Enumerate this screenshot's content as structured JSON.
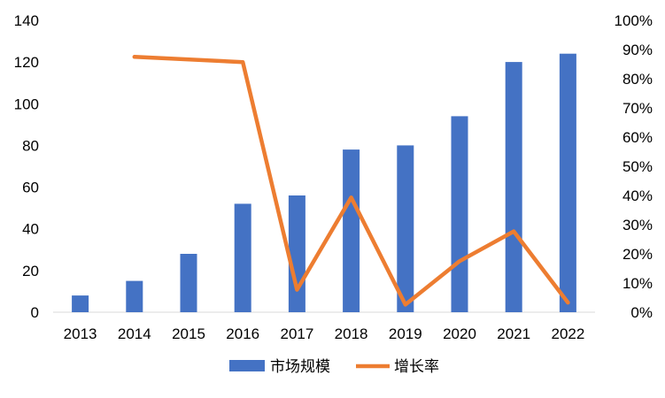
{
  "chart_data": {
    "type": "bar",
    "categories": [
      "2013",
      "2014",
      "2015",
      "2016",
      "2017",
      "2018",
      "2019",
      "2020",
      "2021",
      "2022"
    ],
    "series": [
      {
        "name": "市场规模",
        "type": "bar",
        "axis": "left",
        "color": "#4472C4",
        "values": [
          8,
          15,
          28,
          52,
          56,
          78,
          80,
          94,
          120,
          124
        ]
      },
      {
        "name": "增长率",
        "type": "line",
        "axis": "right",
        "color": "#ED7D31",
        "values": [
          null,
          0.875,
          null,
          0.857,
          0.077,
          0.393,
          0.026,
          0.175,
          0.277,
          0.033
        ]
      }
    ],
    "y_left": {
      "min": 0,
      "max": 140,
      "ticks": [
        0,
        20,
        40,
        60,
        80,
        100,
        120,
        140
      ],
      "tick_labels": [
        "0",
        "20",
        "40",
        "60",
        "80",
        "100",
        "120",
        "140"
      ]
    },
    "y_right": {
      "min": 0,
      "max": 1,
      "ticks": [
        0,
        0.1,
        0.2,
        0.3,
        0.4,
        0.5,
        0.6,
        0.7,
        0.8,
        0.9,
        1.0
      ],
      "tick_labels": [
        "0%",
        "10%",
        "20%",
        "30%",
        "40%",
        "50%",
        "60%",
        "70%",
        "80%",
        "90%",
        "100%"
      ]
    },
    "title": "",
    "xlabel": "",
    "ylabel": "",
    "grid": false,
    "legend": {
      "position": "bottom",
      "entries": [
        "市场规模",
        "增长率"
      ]
    }
  }
}
